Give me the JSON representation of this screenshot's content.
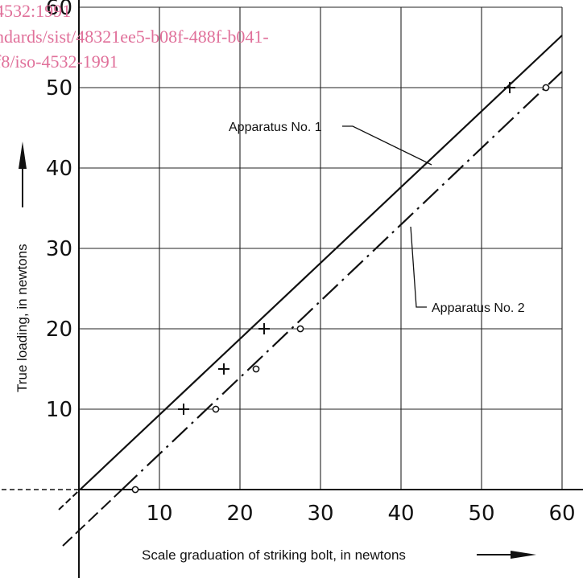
{
  "watermark": {
    "lines": [
      "4532:1991",
      "ndards/sist/48321ee5-b08f-488f-b041-",
      "f8/iso-4532-1991"
    ],
    "color": "#e0709a"
  },
  "chart_data": {
    "type": "line",
    "title": "",
    "xlabel": "Scale graduation of striking bolt, in newtons",
    "ylabel": "True loading, in newtons",
    "xlim": [
      0,
      60
    ],
    "ylim": [
      0,
      60
    ],
    "x_ticks": [
      10,
      20,
      30,
      40,
      50,
      60
    ],
    "y_ticks": [
      10,
      20,
      30,
      40,
      50,
      60
    ],
    "grid": true,
    "series": [
      {
        "name": "Apparatus No. 1",
        "style": "solid",
        "marker": "plus",
        "points": [
          [
            13,
            10
          ],
          [
            18,
            15
          ],
          [
            23,
            20
          ],
          [
            53.5,
            50
          ]
        ],
        "line": [
          [
            -2.5,
            -2.5
          ],
          [
            60,
            56.5
          ]
        ]
      },
      {
        "name": "Apparatus No. 2",
        "style": "dash-dot",
        "marker": "circle",
        "points": [
          [
            7,
            0
          ],
          [
            17,
            10
          ],
          [
            22,
            15
          ],
          [
            27.5,
            20
          ],
          [
            58,
            50
          ]
        ],
        "line": [
          [
            -2,
            -7
          ],
          [
            60,
            52
          ]
        ]
      }
    ],
    "annotations": [
      {
        "text": "Apparatus No. 1",
        "series": 0
      },
      {
        "text": "Apparatus No. 2",
        "series": 1
      }
    ]
  }
}
